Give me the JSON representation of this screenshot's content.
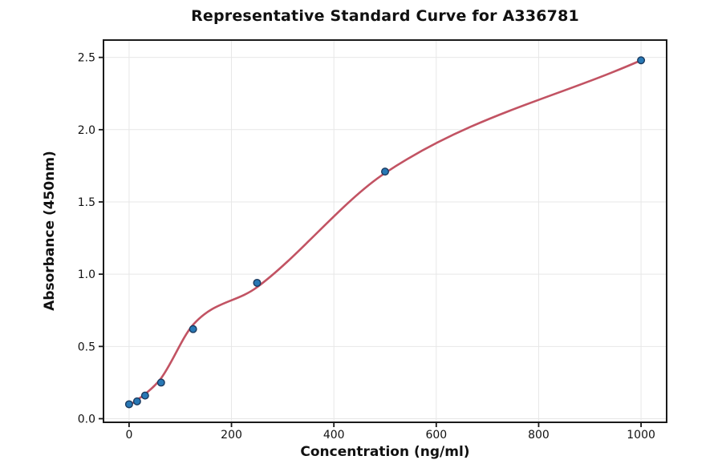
{
  "title": "Representative Standard Curve for A336781",
  "chart_data": {
    "type": "scatter",
    "title": "Representative Standard Curve for A336781",
    "xlabel": "Concentration (ng/ml)",
    "ylabel": "Absorbance (450nm)",
    "xlim": [
      -50,
      1050
    ],
    "ylim": [
      -0.025,
      2.62
    ],
    "x_ticks": [
      0,
      200,
      400,
      600,
      800,
      1000
    ],
    "x_tick_labels": [
      "0",
      "200",
      "400",
      "600",
      "800",
      "1000"
    ],
    "y_ticks": [
      0.0,
      0.5,
      1.0,
      1.5,
      2.0,
      2.5
    ],
    "y_tick_labels": [
      "0.0",
      "0.5",
      "1.0",
      "1.5",
      "2.0",
      "2.5"
    ],
    "grid": true,
    "legend": "none",
    "points": {
      "x": [
        0,
        15.6,
        31.25,
        62.5,
        125,
        250,
        500,
        1000
      ],
      "y": [
        0.1,
        0.12,
        0.16,
        0.25,
        0.62,
        0.94,
        1.71,
        2.48
      ]
    },
    "fit_curve": {
      "x": [
        0,
        15.6,
        31.25,
        62.5,
        125,
        250,
        500,
        1000
      ],
      "y": [
        0.09,
        0.13,
        0.17,
        0.28,
        0.65,
        0.91,
        1.7,
        2.48
      ]
    },
    "colors": {
      "curve": "#c25363",
      "marker_fill": "#2878b5",
      "marker_edge": "#1b3a5f",
      "grid": "#e7e7e7",
      "frame": "#1a1a1a",
      "text": "#111111"
    }
  }
}
